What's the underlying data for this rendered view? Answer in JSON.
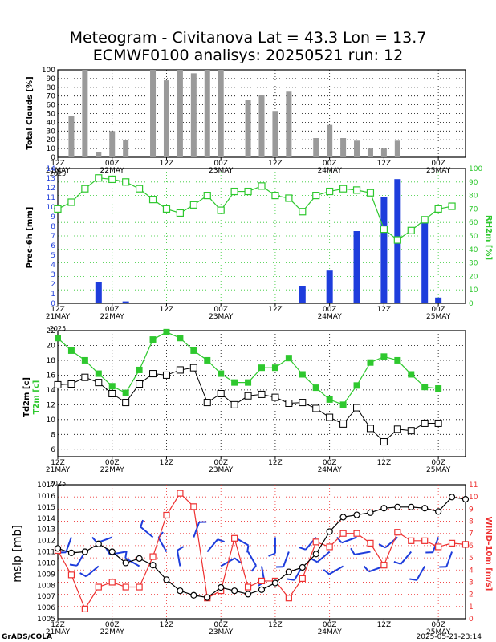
{
  "header": {
    "line1": "Meteogram - Civitanova Lat = 43.3 Lon = 13.7",
    "line2": "ECMWF0100 analisys: 20250521 run: 12"
  },
  "footer": {
    "left": "GrADS/COLA",
    "right": "2025-05-21-23:14"
  },
  "colors": {
    "rain": "#1e3ddc",
    "rh": "#2ec82e",
    "t2m": "#2ec82e",
    "mslp": "#000000",
    "wind": "#ee3030",
    "barb": "#1e3ddc",
    "clouds": "#9a9a9a"
  },
  "chart_data": [
    {
      "type": "bar",
      "title": "Total Clouds [%]",
      "ylabel": "Total Clouds [%]",
      "ylim": [
        0,
        100
      ],
      "yticks": [
        0,
        10,
        20,
        30,
        40,
        50,
        60,
        70,
        80,
        90,
        100
      ],
      "x_step_hours": 3,
      "values": [
        47,
        100,
        6,
        30,
        20,
        0,
        100,
        88,
        100,
        96,
        100,
        100,
        0,
        66,
        71,
        53,
        75,
        0,
        22,
        37,
        22,
        19,
        10,
        10,
        19
      ],
      "xticks": [
        "12Z",
        "00Z",
        "12Z",
        "00Z",
        "12Z",
        "00Z",
        "12Z",
        "00Z"
      ],
      "xdates": [
        "21MAY",
        "22MAY",
        "",
        "23MAY",
        "",
        "24MAY",
        "",
        "25MAY"
      ]
    },
    {
      "type": "bar",
      "title": "Prec-6h [mm] / RH2m [%]",
      "ylabel": "Prec-6h [mm]",
      "ylabel_right": "RH2m [%]",
      "ylim": [
        0,
        14
      ],
      "ylim_right": [
        0,
        100
      ],
      "yticks": [
        0,
        1,
        2,
        3,
        4,
        5,
        6,
        7,
        8,
        9,
        10,
        11,
        12,
        13,
        14
      ],
      "yticks_right": [
        0,
        10,
        20,
        30,
        40,
        50,
        60,
        70,
        80,
        90,
        100
      ],
      "series": [
        {
          "name": "Prec-6h",
          "x_hours": [
            9,
            15,
            54,
            60,
            66,
            72,
            75,
            81,
            84
          ],
          "values": [
            2.2,
            0.2,
            1.8,
            3.4,
            7.5,
            11,
            12.9,
            8.4,
            0.6
          ]
        },
        {
          "name": "RH2m",
          "x_start_hour": 0,
          "x_step_hours": 3,
          "values": [
            70,
            75,
            85,
            93,
            92,
            90,
            85,
            77,
            70,
            67,
            73,
            80,
            69,
            83,
            83,
            87,
            80,
            78,
            68,
            80,
            83,
            85,
            84,
            82,
            55,
            47,
            54,
            62,
            70,
            72
          ]
        }
      ],
      "xticks": [
        "12Z",
        "00Z",
        "12Z",
        "00Z",
        "12Z",
        "00Z",
        "12Z",
        "00Z"
      ],
      "xdates": [
        "21MAY",
        "22MAY",
        "",
        "23MAY",
        "",
        "24MAY",
        "",
        "25MAY"
      ],
      "year": "2025"
    },
    {
      "type": "line",
      "title": "Td2m [c] / T2m [c]",
      "ylabel": "Td2m [c]",
      "ylabel2": "T2m [c]",
      "ylim": [
        5,
        22
      ],
      "yticks": [
        6,
        8,
        10,
        12,
        14,
        16,
        18,
        20,
        22
      ],
      "x_start_hour": 0,
      "x_step_hours": 3,
      "series": [
        {
          "name": "T2m",
          "values": [
            21,
            19.3,
            18,
            16.2,
            14.5,
            13.6,
            16.7,
            20.8,
            21.8,
            21,
            19.3,
            18,
            16.2,
            15,
            15,
            17,
            17,
            18.3,
            16.1,
            14.3,
            12.7,
            12,
            14.6,
            17.7,
            18.5,
            18,
            16.1,
            14.4,
            14.2
          ]
        },
        {
          "name": "Td2m",
          "values": [
            14.7,
            14.8,
            15.7,
            15,
            13.5,
            12.3,
            14.8,
            16.2,
            16,
            16.7,
            17,
            12.3,
            13.5,
            12,
            13.2,
            13.4,
            13,
            12.2,
            12.3,
            11.5,
            10.3,
            9.4,
            11.6,
            8.8,
            7,
            8.7,
            8.5,
            9.5,
            9.5
          ]
        }
      ],
      "xticks": [
        "12Z",
        "00Z",
        "12Z",
        "00Z",
        "12Z",
        "00Z",
        "12Z",
        "00Z"
      ],
      "xdates": [
        "21MAY",
        "22MAY",
        "",
        "23MAY",
        "",
        "24MAY",
        "",
        "25MAY"
      ],
      "year": "2025"
    },
    {
      "type": "line",
      "title": "mslp [mb] / WIND-10m [m/s]",
      "ylabel": "mslp [mb]",
      "ylabel_right": "WIND-10m [m/s]",
      "ylim": [
        1005,
        1017
      ],
      "ylim_right": [
        0,
        11
      ],
      "yticks": [
        1005,
        1006,
        1007,
        1008,
        1009,
        1010,
        1011,
        1012,
        1013,
        1014,
        1015,
        1016,
        1017
      ],
      "yticks_right": [
        0,
        1,
        2,
        3,
        4,
        5,
        6,
        7,
        8,
        9,
        10,
        11
      ],
      "x_start_hour": 0,
      "x_step_hours": 3,
      "series": [
        {
          "name": "mslp",
          "values": [
            1011.3,
            1010.9,
            1011,
            1011.7,
            1011,
            1010,
            1010.4,
            1009.8,
            1008.5,
            1007.5,
            1007.1,
            1006.9,
            1007.8,
            1007.5,
            1007.2,
            1007.6,
            1008.2,
            1009.2,
            1009.6,
            1010.8,
            1012.8,
            1014.1,
            1014.3,
            1014.5,
            1014.9,
            1015,
            1015,
            1014.9,
            1014.6,
            1015.9,
            1015.7
          ]
        },
        {
          "name": "WIND-10m",
          "values": [
            5.6,
            3.6,
            0.8,
            2.6,
            3,
            2.6,
            2.6,
            5.1,
            8.5,
            10.3,
            9.2,
            1.7,
            2.3,
            6.6,
            2.6,
            3.1,
            3.1,
            1.7,
            3.3,
            6.3,
            5.9,
            7,
            7,
            6.2,
            4.4,
            7.1,
            6.4,
            6.4,
            5.9,
            6.2,
            6.1
          ]
        }
      ],
      "xticks": [
        "12Z",
        "00Z",
        "12Z",
        "00Z",
        "12Z",
        "00Z",
        "12Z",
        "00Z"
      ],
      "xdates": [
        "21MAY",
        "22MAY",
        "",
        "23MAY",
        "",
        "24MAY",
        "",
        "25MAY"
      ],
      "year": "2025"
    }
  ]
}
